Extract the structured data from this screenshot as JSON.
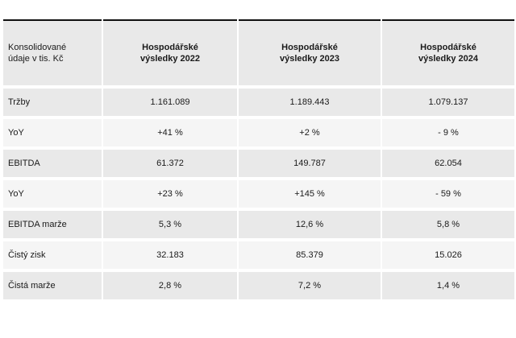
{
  "header": {
    "label_line1": "Konsolidované",
    "label_line2": "údaje v tis. Kč",
    "columns": [
      {
        "line1": "Hospodářské",
        "line2": "výsledky 2022"
      },
      {
        "line1": "Hospodářské",
        "line2": "výsledky 2023"
      },
      {
        "line1": "Hospodářské",
        "line2": "výsledky 2024"
      }
    ]
  },
  "rows": [
    {
      "label": "Tržby",
      "values": [
        "1.161.089",
        "1.189.443",
        "1.079.137"
      ]
    },
    {
      "label": "YoY",
      "values": [
        "+41 %",
        "+2 %",
        "- 9 %"
      ]
    },
    {
      "label": "EBITDA",
      "values": [
        "61.372",
        "149.787",
        "62.054"
      ]
    },
    {
      "label": "YoY",
      "values": [
        "+23 %",
        "+145 %",
        "- 59 %"
      ]
    },
    {
      "label": "EBITDA marže",
      "values": [
        "5,3 %",
        "12,6 %",
        "5,8 %"
      ]
    },
    {
      "label": "Čistý zisk",
      "values": [
        "32.183",
        "85.379",
        "15.026"
      ]
    },
    {
      "label": "Čistá marže",
      "values": [
        "2,8 %",
        "7,2 %",
        "1,4 %"
      ]
    }
  ]
}
